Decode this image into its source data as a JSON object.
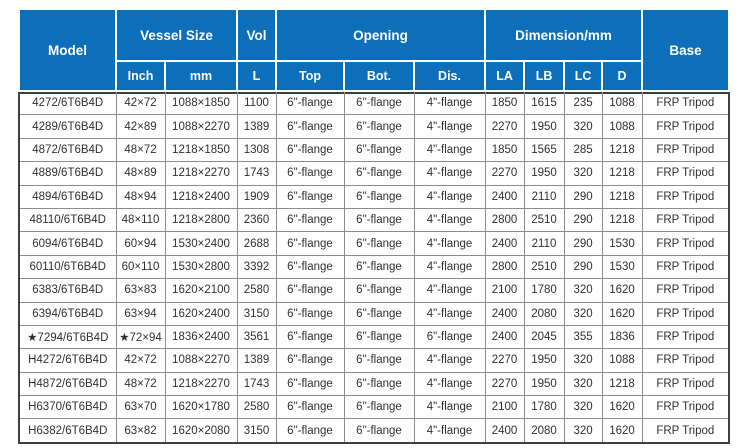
{
  "colors": {
    "header_bg": "#0d6fb9",
    "header_text": "#ffffff",
    "cell_text": "#303030",
    "grid_line": "#8c8c8c",
    "outer_border": "#3f3f3f"
  },
  "table": {
    "header": {
      "model": "Model",
      "vessel_size": "Vessel Size",
      "inch": "Inch",
      "mm": "mm",
      "vol": "Vol",
      "l": "L",
      "opening": "Opening",
      "top": "Top",
      "bot": "Bot.",
      "dis": "Dis.",
      "dimension": "Dimension/mm",
      "la": "LA",
      "lb": "LB",
      "lc": "LC",
      "d": "D",
      "base": "Base"
    },
    "rows": [
      [
        "4272/6T6B4D",
        "42×72",
        "1088×1850",
        "1100",
        "6\"-flange",
        "6\"-flange",
        "4\"-flange",
        "1850",
        "1615",
        "235",
        "1088",
        "FRP Tripod"
      ],
      [
        "4289/6T6B4D",
        "42×89",
        "1088×2270",
        "1389",
        "6\"-flange",
        "6\"-flange",
        "4\"-flange",
        "2270",
        "1950",
        "320",
        "1088",
        "FRP Tripod"
      ],
      [
        "4872/6T6B4D",
        "48×72",
        "1218×1850",
        "1308",
        "6\"-flange",
        "6\"-flange",
        "4\"-flange",
        "1850",
        "1565",
        "285",
        "1218",
        "FRP Tripod"
      ],
      [
        "4889/6T6B4D",
        "48×89",
        "1218×2270",
        "1743",
        "6\"-flange",
        "6\"-flange",
        "4\"-flange",
        "2270",
        "1950",
        "320",
        "1218",
        "FRP Tripod"
      ],
      [
        "4894/6T6B4D",
        "48×94",
        "1218×2400",
        "1909",
        "6\"-flange",
        "6\"-flange",
        "4\"-flange",
        "2400",
        "2110",
        "290",
        "1218",
        "FRP Tripod"
      ],
      [
        "48110/6T6B4D",
        "48×110",
        "1218×2800",
        "2360",
        "6\"-flange",
        "6\"-flange",
        "4\"-flange",
        "2800",
        "2510",
        "290",
        "1218",
        "FRP Tripod"
      ],
      [
        "6094/6T6B4D",
        "60×94",
        "1530×2400",
        "2688",
        "6\"-flange",
        "6\"-flange",
        "4\"-flange",
        "2400",
        "2110",
        "290",
        "1530",
        "FRP Tripod"
      ],
      [
        "60110/6T6B4D",
        "60×110",
        "1530×2800",
        "3392",
        "6\"-flange",
        "6\"-flange",
        "4\"-flange",
        "2800",
        "2510",
        "290",
        "1530",
        "FRP Tripod"
      ],
      [
        "6383/6T6B4D",
        "63×83",
        "1620×2100",
        "2580",
        "6\"-flange",
        "6\"-flange",
        "4\"-flange",
        "2100",
        "1780",
        "320",
        "1620",
        "FRP Tripod"
      ],
      [
        "6394/6T6B4D",
        "63×94",
        "1620×2400",
        "3150",
        "6\"-flange",
        "6\"-flange",
        "4\"-flange",
        "2400",
        "2080",
        "320",
        "1620",
        "FRP Tripod"
      ],
      [
        "★7294/6T6B4D",
        "★72×94",
        "1836×2400",
        "3561",
        "6\"-flange",
        "6\"-flange",
        "6\"-flange",
        "2400",
        "2045",
        "355",
        "1836",
        "FRP Tripod"
      ],
      [
        "H4272/6T6B4D",
        "42×72",
        "1088×2270",
        "1389",
        "6\"-flange",
        "6\"-flange",
        "4\"-flange",
        "2270",
        "1950",
        "320",
        "1088",
        "FRP Tripod"
      ],
      [
        "H4872/6T6B4D",
        "48×72",
        "1218×2270",
        "1743",
        "6\"-flange",
        "6\"-flange",
        "4\"-flange",
        "2270",
        "1950",
        "320",
        "1218",
        "FRP Tripod"
      ],
      [
        "H6370/6T6B4D",
        "63×70",
        "1620×1780",
        "2580",
        "6\"-flange",
        "6\"-flange",
        "4\"-flange",
        "2100",
        "1780",
        "320",
        "1620",
        "FRP Tripod"
      ],
      [
        "H6382/6T6B4D",
        "63×82",
        "1620×2080",
        "3150",
        "6\"-flange",
        "6\"-flange",
        "4\"-flange",
        "2400",
        "2080",
        "320",
        "1620",
        "FRP Tripod"
      ]
    ]
  }
}
